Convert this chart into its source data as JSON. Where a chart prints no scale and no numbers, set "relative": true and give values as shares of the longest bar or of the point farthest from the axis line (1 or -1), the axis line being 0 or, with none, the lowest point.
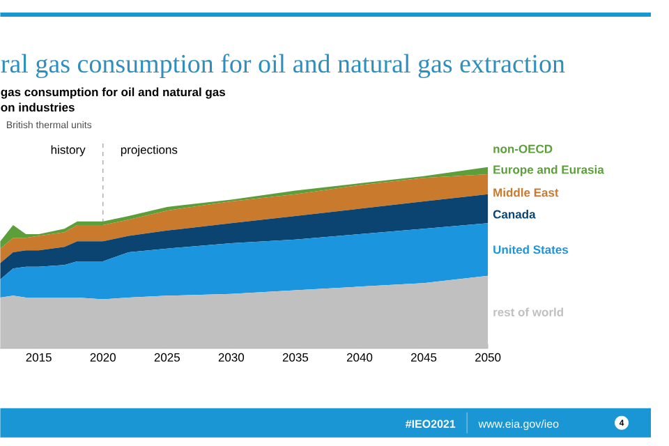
{
  "chart_data": {
    "type": "area",
    "title": "ral gas consumption for oil and natural gas extraction",
    "subtitle": "gas consumption for oil and natural gas",
    "annotations": [
      "on industries",
      "British thermal units",
      "history",
      "projections",
      "non-OECD",
      "#IEO2021",
      "www.eia.gov/ieo",
      "4"
    ],
    "x": [
      2012,
      2013,
      2014,
      2015,
      2017,
      2018,
      2020,
      2022,
      2025,
      2030,
      2035,
      2040,
      2045,
      2050
    ],
    "xlim": [
      2012,
      2050
    ],
    "xticks": [
      2015,
      2020,
      2025,
      2030,
      2035,
      2040,
      2045,
      2050
    ],
    "relative": true,
    "stacked": true,
    "series": [
      {
        "name": "rest of world",
        "color": "#c0c0c0",
        "values": [
          0.28,
          0.29,
          0.28,
          0.28,
          0.28,
          0.28,
          0.27,
          0.28,
          0.29,
          0.3,
          0.32,
          0.34,
          0.36,
          0.4
        ]
      },
      {
        "name": "United States",
        "color": "#1b95dd",
        "values": [
          0.1,
          0.15,
          0.17,
          0.17,
          0.18,
          0.2,
          0.21,
          0.25,
          0.26,
          0.28,
          0.28,
          0.29,
          0.3,
          0.29
        ]
      },
      {
        "name": "Canada",
        "color": "#0b4470",
        "values": [
          0.09,
          0.09,
          0.09,
          0.09,
          0.1,
          0.11,
          0.11,
          0.09,
          0.1,
          0.11,
          0.13,
          0.14,
          0.15,
          0.16
        ]
      },
      {
        "name": "Middle East",
        "color": "#c97a2c",
        "values": [
          0.08,
          0.08,
          0.07,
          0.08,
          0.08,
          0.09,
          0.09,
          0.09,
          0.11,
          0.12,
          0.12,
          0.13,
          0.13,
          0.11
        ]
      },
      {
        "name": "Europe and Eurasia",
        "color": "#5b9e3a",
        "values": [
          0.04,
          0.07,
          0.02,
          0.01,
          0.02,
          0.02,
          0.02,
          0.02,
          0.02,
          0.01,
          0.02,
          0.01,
          0.01,
          0.04
        ]
      }
    ],
    "ref_lines": [
      {
        "axis": "x",
        "value": 2020,
        "color": "#b0b0b0",
        "line_style": "dashed"
      }
    ]
  }
}
